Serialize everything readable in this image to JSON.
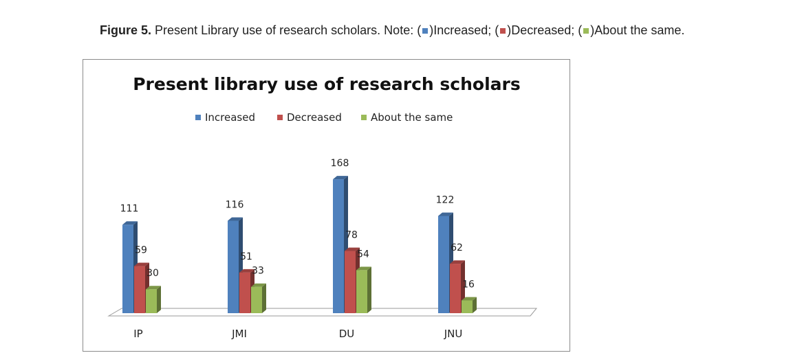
{
  "caption": {
    "figure_label": "Figure 5.",
    "text": "Present Library use of research scholars. Note: (",
    "legend_parts": [
      {
        "label": ")Increased; (",
        "color": "#4F81BD"
      },
      {
        "label": ")Decreased; (",
        "color": "#C0504D"
      },
      {
        "label": ")About the same.",
        "color": "#9BBB59"
      }
    ]
  },
  "chart_data": {
    "type": "bar",
    "title": "Present library use of research scholars",
    "categories": [
      "IP",
      "JMI",
      "DU",
      "JNU"
    ],
    "series": [
      {
        "name": "Increased",
        "values": [
          111,
          116,
          168,
          122
        ],
        "color": "#4F81BD"
      },
      {
        "name": "Decreased",
        "values": [
          59,
          51,
          78,
          62
        ],
        "color": "#C0504D"
      },
      {
        "name": "About the same",
        "values": [
          30,
          33,
          54,
          16
        ],
        "color": "#9BBB59"
      }
    ],
    "legend_position": "top",
    "grid": false,
    "ylim": [
      0,
      200
    ],
    "style": "3d-clustered-column"
  }
}
